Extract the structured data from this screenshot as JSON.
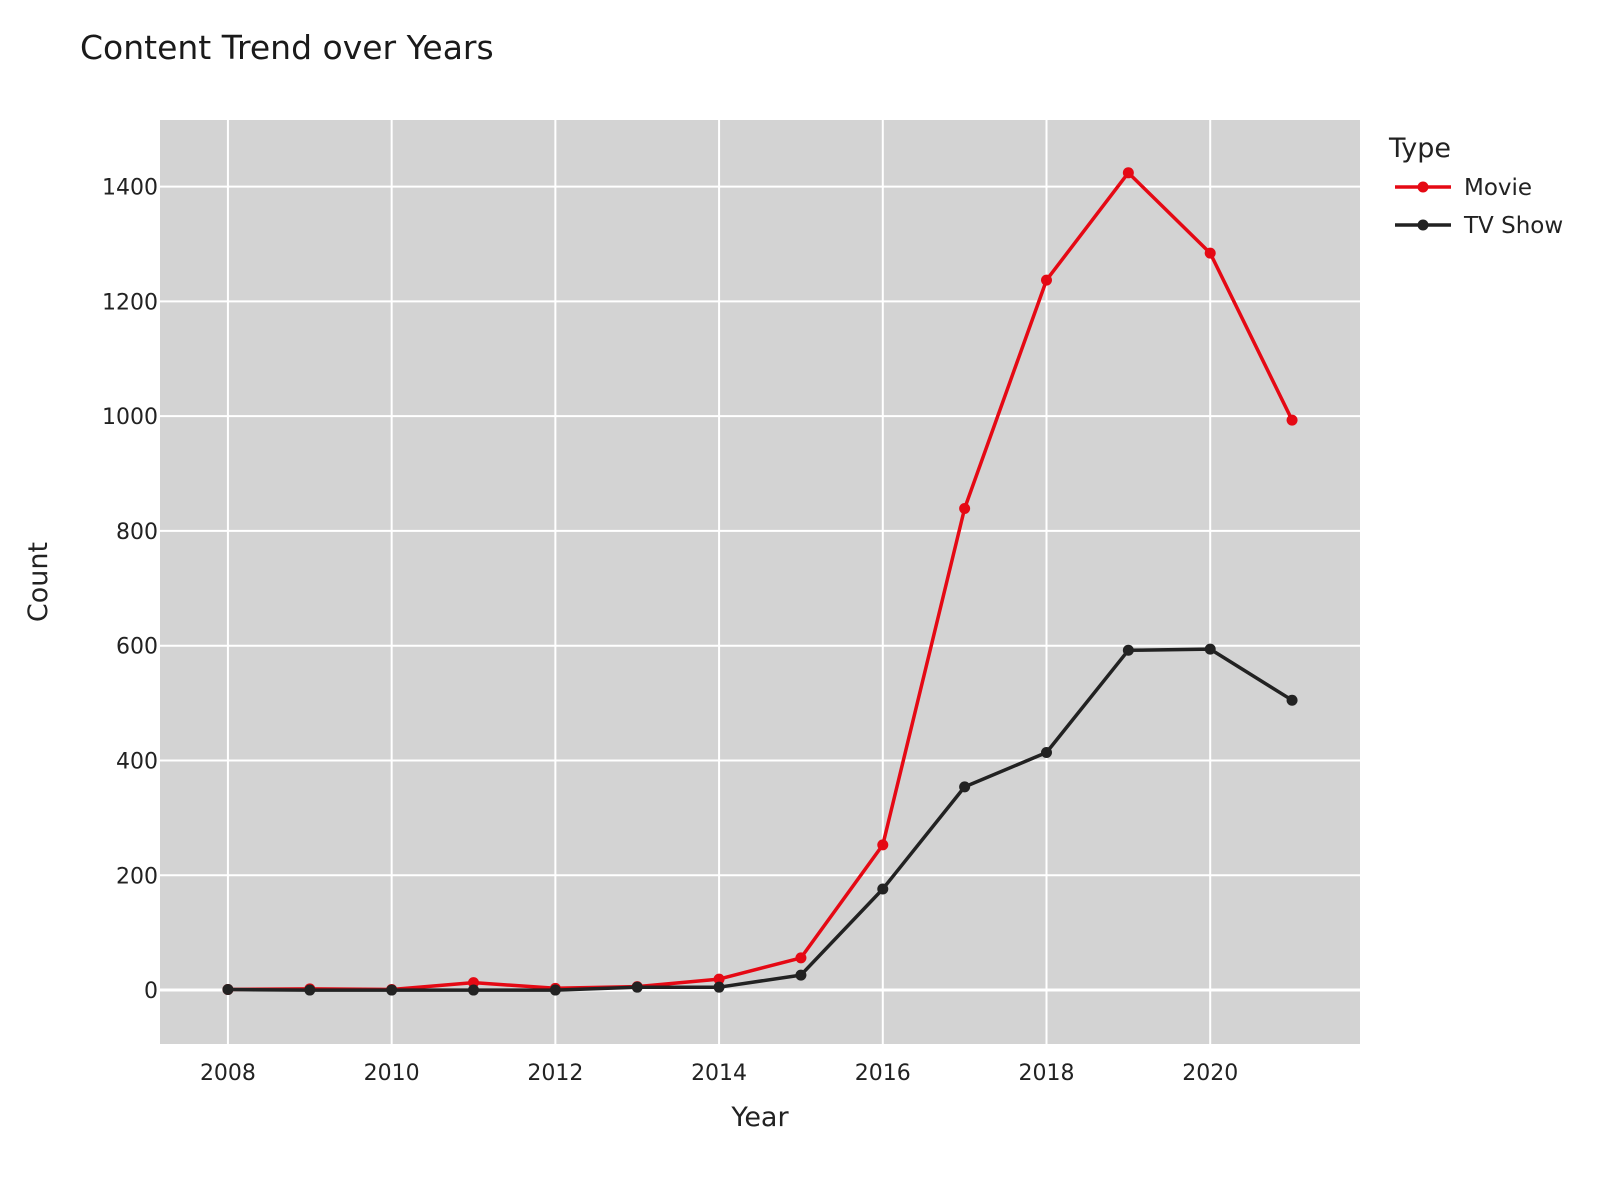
{
  "chart_data": {
    "type": "line",
    "title": "Content Trend over Years",
    "xlabel": "Year",
    "ylabel": "Count",
    "x": [
      2008,
      2009,
      2010,
      2011,
      2012,
      2013,
      2014,
      2015,
      2016,
      2017,
      2018,
      2019,
      2020,
      2021
    ],
    "series": [
      {
        "name": "Movie",
        "color": "#e50914",
        "values": [
          1,
          2,
          1,
          13,
          3,
          6,
          19,
          56,
          253,
          839,
          1237,
          1424,
          1284,
          993
        ]
      },
      {
        "name": "TV Show",
        "color": "#222222",
        "values": [
          1,
          0,
          0,
          0,
          0,
          5,
          5,
          26,
          176,
          354,
          414,
          592,
          594,
          505
        ]
      }
    ],
    "xlim": [
      2007.17,
      2021.83
    ],
    "ylim": [
      -94,
      1516
    ],
    "xticks": [
      2008,
      2010,
      2012,
      2014,
      2016,
      2018,
      2020
    ],
    "yticks": [
      0,
      200,
      400,
      600,
      800,
      1000,
      1200,
      1400
    ],
    "legend_title": "Type",
    "legend_position": "top-right (outside plot)",
    "grid": true,
    "plot_background": "#d3d3d3"
  }
}
